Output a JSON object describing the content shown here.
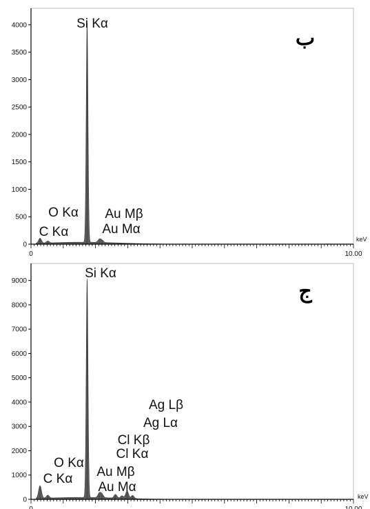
{
  "chart_data": [
    {
      "type": "area",
      "panel_label": "ب",
      "xlabel": "keV",
      "xlim": [
        0,
        10
      ],
      "ylim": [
        0,
        4300
      ],
      "x_tick_labels": [
        "0",
        "10.00"
      ],
      "y_ticks": [
        0,
        500,
        1000,
        1500,
        2000,
        2500,
        3000,
        3500,
        4000
      ],
      "grid": false,
      "legend": "none",
      "peaks": [
        {
          "label": "C Kα",
          "energy": 0.28,
          "counts": 90
        },
        {
          "label": "O Kα",
          "energy": 0.52,
          "counts": 35
        },
        {
          "label": "Si Kα",
          "energy": 1.74,
          "counts": 4000
        },
        {
          "label": "Au Mα",
          "energy": 2.12,
          "counts": 55
        },
        {
          "label": "Au Mβ",
          "energy": 2.2,
          "counts": 40
        }
      ],
      "colors": {
        "fill": "#5c5c5c",
        "axis": "#000000"
      }
    },
    {
      "type": "area",
      "panel_label": "ج",
      "xlabel": "keV",
      "xlim": [
        0,
        10
      ],
      "ylim": [
        0,
        9700
      ],
      "x_tick_labels": [
        "0",
        "10.00"
      ],
      "y_ticks": [
        0,
        1000,
        2000,
        3000,
        4000,
        5000,
        6000,
        7000,
        8000,
        9000
      ],
      "grid": false,
      "legend": "none",
      "peaks": [
        {
          "label": "C Kα",
          "energy": 0.28,
          "counts": 520
        },
        {
          "label": "O Kα",
          "energy": 0.52,
          "counts": 120
        },
        {
          "label": "Si Kα",
          "energy": 1.74,
          "counts": 9000
        },
        {
          "label": "Au Mα",
          "energy": 2.12,
          "counts": 180
        },
        {
          "label": "Au Mβ",
          "energy": 2.2,
          "counts": 140
        },
        {
          "label": "Cl Kα",
          "energy": 2.62,
          "counts": 150
        },
        {
          "label": "Cl Kβ",
          "energy": 2.82,
          "counts": 100
        },
        {
          "label": "Ag Lα",
          "energy": 2.98,
          "counts": 310
        },
        {
          "label": "Ag Lβ",
          "energy": 3.15,
          "counts": 130
        }
      ],
      "colors": {
        "fill": "#5c5c5c",
        "axis": "#000000"
      }
    }
  ]
}
